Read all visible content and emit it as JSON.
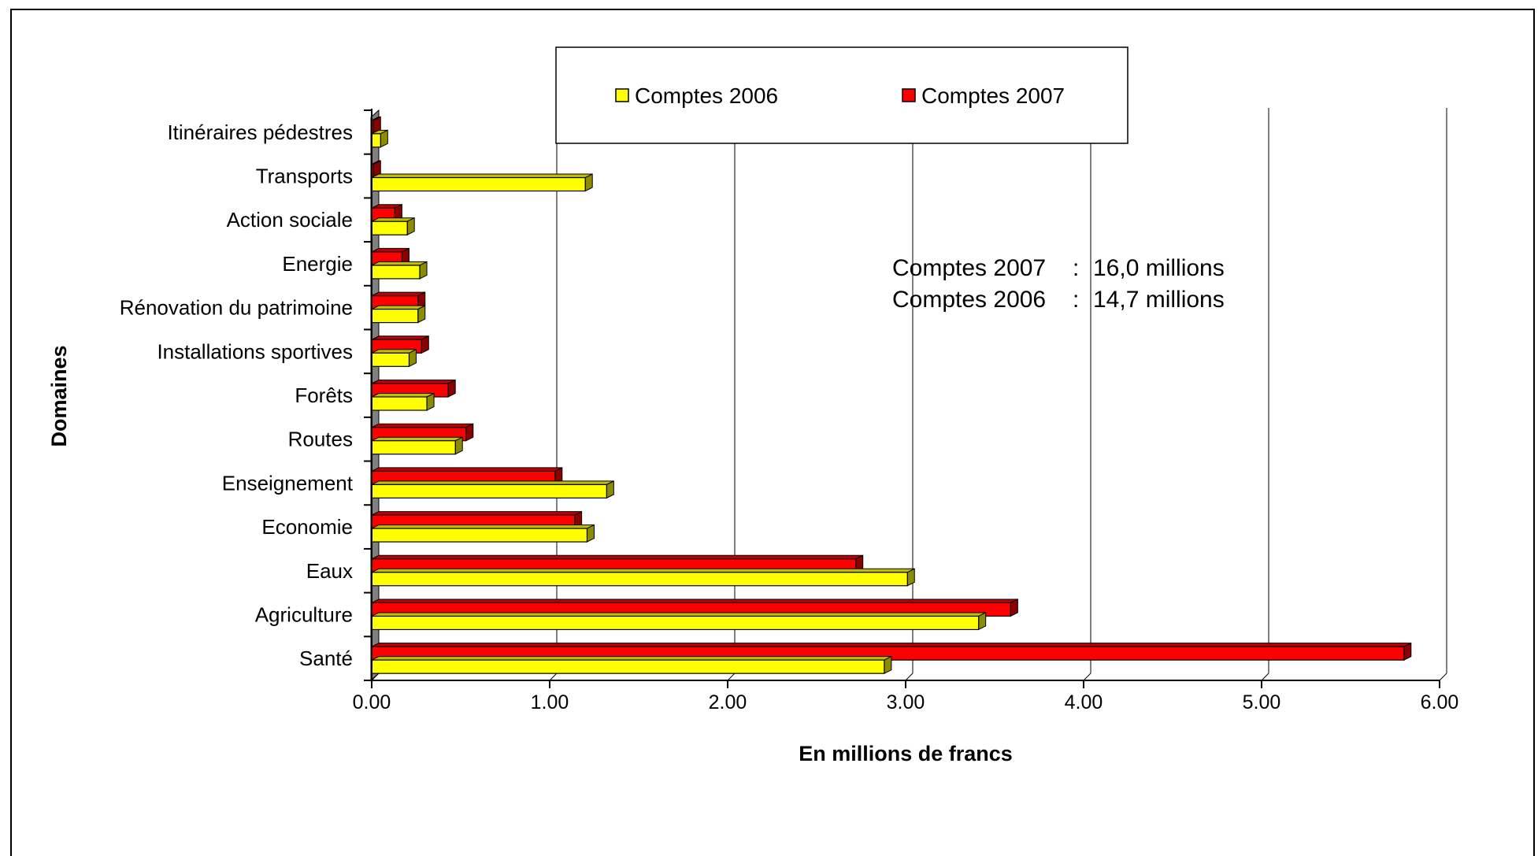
{
  "chart_data": {
    "type": "bar",
    "orientation": "horizontal",
    "style": "3d",
    "categories": [
      "Itinéraires pédestres",
      "Transports",
      "Action sociale",
      "Energie",
      "Rénovation du patrimoine",
      "Installations sportives",
      "Forêts",
      "Routes",
      "Enseignement",
      "Economie",
      "Eaux",
      "Agriculture",
      "Santé"
    ],
    "series": [
      {
        "name": "Comptes 2006",
        "color": "#FFFF00",
        "values": [
          0.05,
          1.2,
          0.2,
          0.27,
          0.26,
          0.21,
          0.31,
          0.47,
          1.32,
          1.21,
          3.01,
          3.41,
          2.88
        ]
      },
      {
        "name": "Comptes 2007",
        "color": "#FF0000",
        "values": [
          0.01,
          0.01,
          0.13,
          0.17,
          0.26,
          0.28,
          0.43,
          0.53,
          1.03,
          1.14,
          2.72,
          3.59,
          5.8
        ]
      }
    ],
    "xlabel": "En  millions  de  francs",
    "ylabel": "Domaines",
    "xlim": [
      0,
      6
    ],
    "xticks": [
      "0.00",
      "1.00",
      "2.00",
      "3.00",
      "4.00",
      "5.00",
      "6.00"
    ],
    "grid": "vertical",
    "legend_position": "top",
    "annotations": [
      {
        "label": "Comptes 2007",
        "sep": ":",
        "value": "16,0 millions"
      },
      {
        "label": "Comptes 2006",
        "sep": ":",
        "value": "14,7 millions"
      }
    ]
  }
}
